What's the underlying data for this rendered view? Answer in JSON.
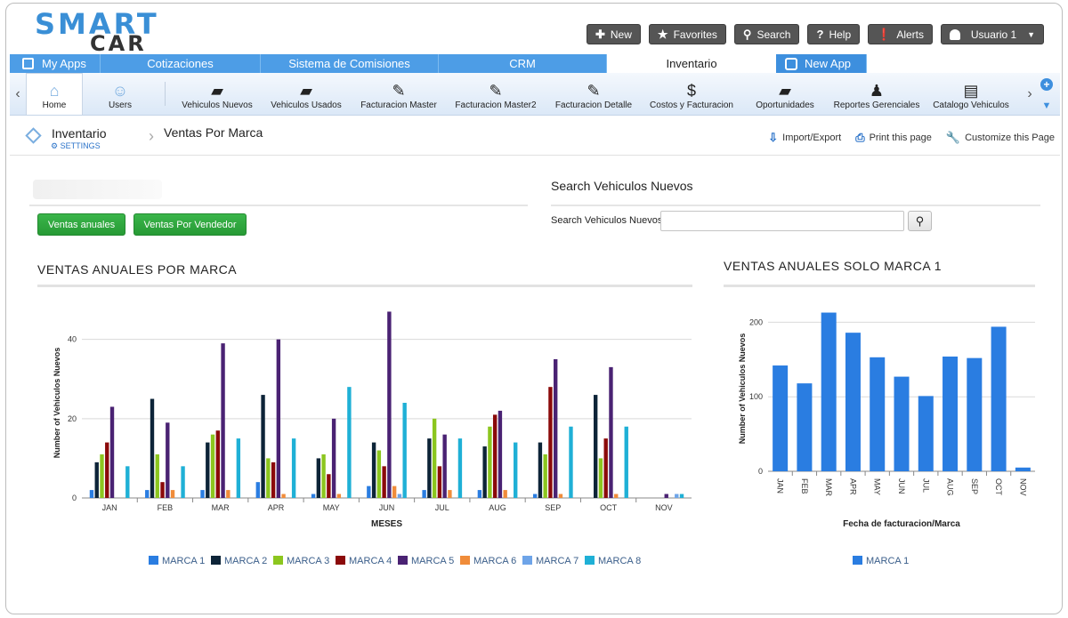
{
  "logo": {
    "line1": "SMART",
    "line2": "CAR"
  },
  "topbar": {
    "new": "New",
    "favorites": "Favorites",
    "search": "Search",
    "help": "Help",
    "alerts": "Alerts",
    "user": "Usuario 1"
  },
  "tabs": {
    "myapps": "My Apps",
    "cotizaciones": "Cotizaciones",
    "comisiones": "Sistema de Comisiones",
    "crm": "CRM",
    "inventario": "Inventario",
    "newapp": "New App"
  },
  "toolbar": {
    "home": "Home",
    "users": "Users",
    "vnuevos": "Vehiculos Nuevos",
    "vusados": "Vehiculos Usados",
    "fmaster": "Facturacion Master",
    "fmaster2": "Facturacion Master2",
    "fdetalle": "Facturacion Detalle",
    "costos": "Costos y Facturacion",
    "oport": "Oportunidades",
    "reportes": "Reportes Gerenciales",
    "catalogo": "Catalogo Vehiculos"
  },
  "crumb": {
    "module": "Inventario",
    "settings": "SETTINGS",
    "page": "Ventas Por Marca",
    "import": "Import/Export",
    "print": "Print this page",
    "customize": "Customize this Page"
  },
  "buttons": {
    "anuales": "Ventas anuales",
    "vendedor": "Ventas Por Vendedor"
  },
  "search": {
    "title": "Search Vehiculos Nuevos",
    "label": "Search Vehiculos Nuevos",
    "value": ""
  },
  "chart_titles": {
    "left": "VENTAS ANUALES POR MARCA",
    "right": "VENTAS ANUALES SOLO MARCA 1"
  },
  "colors": {
    "m1": "#2a7de1",
    "m2": "#0d2438",
    "m3": "#8cc61f",
    "m4": "#8b0a0a",
    "m5": "#4a2273",
    "m6": "#f08c3a",
    "m7": "#6ea4e8",
    "m8": "#1fb0d6",
    "single": "#2a7de1"
  },
  "chart_data": [
    {
      "type": "bar",
      "xlabel": "MESES",
      "ylabel": "Number of Vehiculos Nuevos",
      "ylim": [
        0,
        48
      ],
      "yticks": [
        0,
        20,
        40
      ],
      "categories": [
        "JAN",
        "FEB",
        "MAR",
        "APR",
        "MAY",
        "JUN",
        "JUL",
        "AUG",
        "SEP",
        "OCT",
        "NOV"
      ],
      "legend": "bottom",
      "series": [
        {
          "name": "MARCA 1",
          "color": "#2a7de1",
          "values": [
            2,
            2,
            2,
            4,
            1,
            3,
            2,
            2,
            1,
            0,
            0
          ]
        },
        {
          "name": "MARCA 2",
          "color": "#0d2438",
          "values": [
            9,
            25,
            14,
            26,
            10,
            14,
            15,
            13,
            14,
            26,
            0
          ]
        },
        {
          "name": "MARCA 3",
          "color": "#8cc61f",
          "values": [
            11,
            11,
            16,
            10,
            11,
            12,
            20,
            18,
            11,
            10,
            0
          ]
        },
        {
          "name": "MARCA 4",
          "color": "#8b0a0a",
          "values": [
            14,
            4,
            17,
            9,
            6,
            8,
            8,
            21,
            28,
            15,
            0
          ]
        },
        {
          "name": "MARCA 5",
          "color": "#4a2273",
          "values": [
            23,
            19,
            39,
            40,
            20,
            47,
            16,
            22,
            35,
            33,
            1
          ]
        },
        {
          "name": "MARCA 6",
          "color": "#f08c3a",
          "values": [
            0,
            2,
            2,
            1,
            1,
            3,
            2,
            2,
            1,
            1,
            0
          ]
        },
        {
          "name": "MARCA 7",
          "color": "#6ea4e8",
          "values": [
            0,
            0,
            0,
            0,
            0,
            1,
            0,
            0,
            0,
            0,
            1
          ]
        },
        {
          "name": "MARCA 8",
          "color": "#1fb0d6",
          "values": [
            8,
            8,
            15,
            15,
            28,
            24,
            15,
            14,
            18,
            18,
            1
          ]
        }
      ]
    },
    {
      "type": "bar",
      "xlabel": "Fecha de facturacion/Marca",
      "ylabel": "Number of Vehiculos Nuevos",
      "ylim": [
        0,
        222
      ],
      "yticks": [
        0,
        100,
        200
      ],
      "categories": [
        "JAN",
        "FEB",
        "MAR",
        "APR",
        "MAY",
        "JUN",
        "JUL",
        "AUG",
        "SEP",
        "OCT",
        "NOV"
      ],
      "legend": "bottom",
      "series": [
        {
          "name": "MARCA 1",
          "color": "#2a7de1",
          "values": [
            142,
            118,
            213,
            186,
            153,
            127,
            101,
            154,
            152,
            194,
            5
          ]
        }
      ]
    }
  ]
}
